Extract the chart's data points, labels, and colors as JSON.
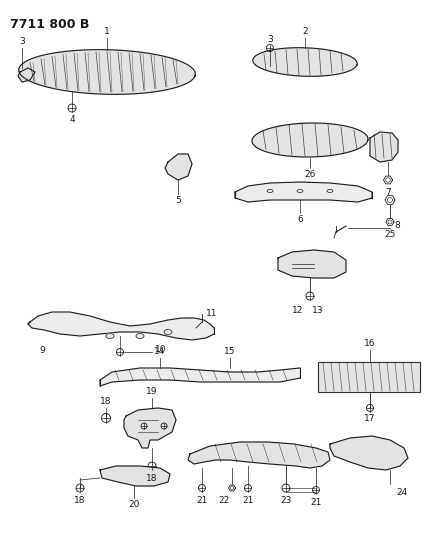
{
  "title": "7711 800 B",
  "bg_color": "#ffffff",
  "line_color": "#1a1a1a",
  "title_fontsize": 9,
  "label_fontsize": 6.5,
  "fig_width": 4.28,
  "fig_height": 5.33,
  "dpi": 100,
  "layout": {
    "xlim": [
      0,
      428
    ],
    "ylim": [
      0,
      533
    ]
  }
}
